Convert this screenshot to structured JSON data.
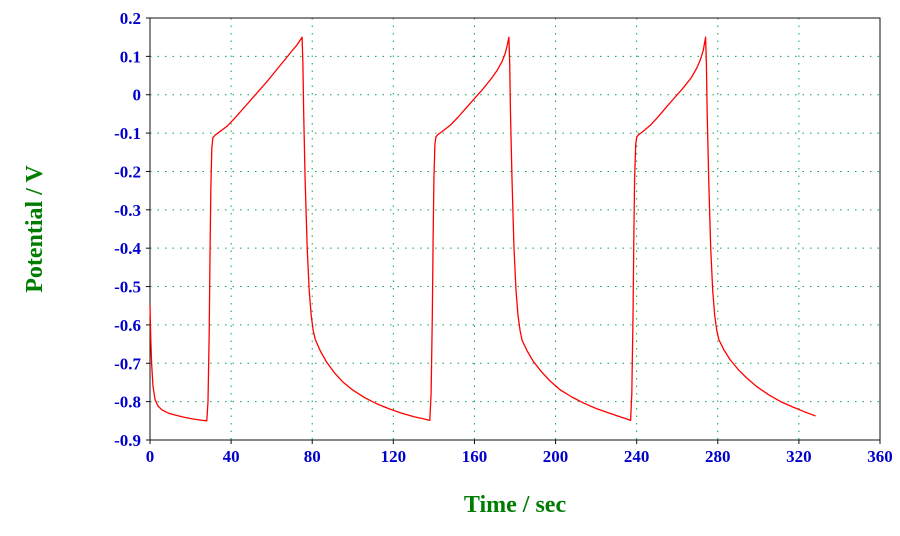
{
  "chart_data": {
    "type": "line",
    "title": "",
    "xlabel": "Time / sec",
    "ylabel": "Potential / V",
    "xlim": [
      0,
      360
    ],
    "ylim": [
      -0.9,
      0.2
    ],
    "grid": "dotted",
    "legend": "none",
    "x_tick_values": [
      0,
      40,
      80,
      120,
      160,
      200,
      240,
      280,
      320,
      360
    ],
    "x_tick_labels": [
      "0",
      "40",
      "80",
      "120",
      "160",
      "200",
      "240",
      "280",
      "320",
      "360"
    ],
    "y_tick_values": [
      0.2,
      0.1,
      0,
      -0.1,
      -0.2,
      -0.3,
      -0.4,
      -0.5,
      -0.6,
      -0.7,
      -0.8,
      -0.9
    ],
    "y_tick_labels": [
      "0.2",
      "0.1",
      "0",
      "-0.1",
      "-0.2",
      "-0.3",
      "-0.4",
      "-0.5",
      "-0.6",
      "-0.7",
      "-0.8",
      "-0.9"
    ],
    "colors": {
      "line": "#ff0000",
      "grid": "#00a651",
      "tick_label": "#0000cc",
      "axis_title": "#007d00",
      "frame": "#101010",
      "background": "#ffffff"
    },
    "series": [
      {
        "name": "potential",
        "color": "#ff0000",
        "points": [
          [
            0,
            -0.55
          ],
          [
            0.4,
            -0.64
          ],
          [
            0.8,
            -0.7
          ],
          [
            1.5,
            -0.76
          ],
          [
            2.5,
            -0.795
          ],
          [
            4,
            -0.812
          ],
          [
            6,
            -0.822
          ],
          [
            9,
            -0.83
          ],
          [
            13,
            -0.836
          ],
          [
            17,
            -0.841
          ],
          [
            21,
            -0.845
          ],
          [
            25,
            -0.848
          ],
          [
            28,
            -0.85
          ],
          [
            28.6,
            -0.8
          ],
          [
            29.2,
            -0.62
          ],
          [
            29.6,
            -0.42
          ],
          [
            30,
            -0.25
          ],
          [
            30.5,
            -0.14
          ],
          [
            31,
            -0.112
          ],
          [
            32,
            -0.106
          ],
          [
            34,
            -0.098
          ],
          [
            38,
            -0.082
          ],
          [
            42,
            -0.06
          ],
          [
            46,
            -0.036
          ],
          [
            50,
            -0.012
          ],
          [
            54,
            0.012
          ],
          [
            58,
            0.036
          ],
          [
            62,
            0.062
          ],
          [
            66,
            0.088
          ],
          [
            70,
            0.114
          ],
          [
            72.5,
            0.13
          ],
          [
            74,
            0.142
          ],
          [
            75,
            0.15
          ],
          [
            75.4,
            0.08
          ],
          [
            75.8,
            -0.05
          ],
          [
            76.5,
            -0.22
          ],
          [
            77.5,
            -0.4
          ],
          [
            78.5,
            -0.51
          ],
          [
            79.5,
            -0.575
          ],
          [
            80.5,
            -0.615
          ],
          [
            81.5,
            -0.638
          ],
          [
            84,
            -0.668
          ],
          [
            87,
            -0.696
          ],
          [
            91,
            -0.725
          ],
          [
            95,
            -0.748
          ],
          [
            100,
            -0.77
          ],
          [
            106,
            -0.79
          ],
          [
            112,
            -0.806
          ],
          [
            118,
            -0.819
          ],
          [
            124,
            -0.83
          ],
          [
            130,
            -0.839
          ],
          [
            135,
            -0.845
          ],
          [
            138,
            -0.849
          ],
          [
            138.6,
            -0.78
          ],
          [
            139.2,
            -0.58
          ],
          [
            139.6,
            -0.38
          ],
          [
            140,
            -0.22
          ],
          [
            140.5,
            -0.13
          ],
          [
            141,
            -0.11
          ],
          [
            142,
            -0.104
          ],
          [
            144,
            -0.096
          ],
          [
            148,
            -0.08
          ],
          [
            152,
            -0.058
          ],
          [
            156,
            -0.034
          ],
          [
            160,
            -0.01
          ],
          [
            164,
            0.014
          ],
          [
            168,
            0.04
          ],
          [
            171,
            0.062
          ],
          [
            173.5,
            0.085
          ],
          [
            175,
            0.105
          ],
          [
            176,
            0.125
          ],
          [
            177,
            0.15
          ],
          [
            177.4,
            0.08
          ],
          [
            177.8,
            -0.05
          ],
          [
            178.5,
            -0.22
          ],
          [
            179.5,
            -0.4
          ],
          [
            180.5,
            -0.51
          ],
          [
            181.5,
            -0.575
          ],
          [
            182.5,
            -0.615
          ],
          [
            183.5,
            -0.64
          ],
          [
            186,
            -0.668
          ],
          [
            189,
            -0.695
          ],
          [
            193,
            -0.722
          ],
          [
            197,
            -0.745
          ],
          [
            202,
            -0.768
          ],
          [
            208,
            -0.788
          ],
          [
            214,
            -0.804
          ],
          [
            220,
            -0.818
          ],
          [
            226,
            -0.829
          ],
          [
            231,
            -0.838
          ],
          [
            235,
            -0.845
          ],
          [
            237,
            -0.849
          ],
          [
            237.6,
            -0.78
          ],
          [
            238.2,
            -0.58
          ],
          [
            238.6,
            -0.38
          ],
          [
            239,
            -0.22
          ],
          [
            239.5,
            -0.13
          ],
          [
            240,
            -0.11
          ],
          [
            241,
            -0.104
          ],
          [
            243,
            -0.096
          ],
          [
            247,
            -0.078
          ],
          [
            251,
            -0.055
          ],
          [
            255,
            -0.03
          ],
          [
            259,
            -0.006
          ],
          [
            263,
            0.018
          ],
          [
            267,
            0.045
          ],
          [
            269.5,
            0.068
          ],
          [
            271.5,
            0.092
          ],
          [
            272.8,
            0.115
          ],
          [
            274,
            0.15
          ],
          [
            274.4,
            0.08
          ],
          [
            274.8,
            -0.05
          ],
          [
            275.5,
            -0.22
          ],
          [
            276.5,
            -0.4
          ],
          [
            277.5,
            -0.51
          ],
          [
            278.5,
            -0.575
          ],
          [
            279.5,
            -0.615
          ],
          [
            280.5,
            -0.638
          ],
          [
            283,
            -0.665
          ],
          [
            286,
            -0.69
          ],
          [
            290,
            -0.716
          ],
          [
            294,
            -0.737
          ],
          [
            299,
            -0.76
          ],
          [
            305,
            -0.782
          ],
          [
            311,
            -0.8
          ],
          [
            317,
            -0.814
          ],
          [
            322,
            -0.825
          ],
          [
            326,
            -0.833
          ],
          [
            328,
            -0.837
          ]
        ]
      }
    ]
  }
}
